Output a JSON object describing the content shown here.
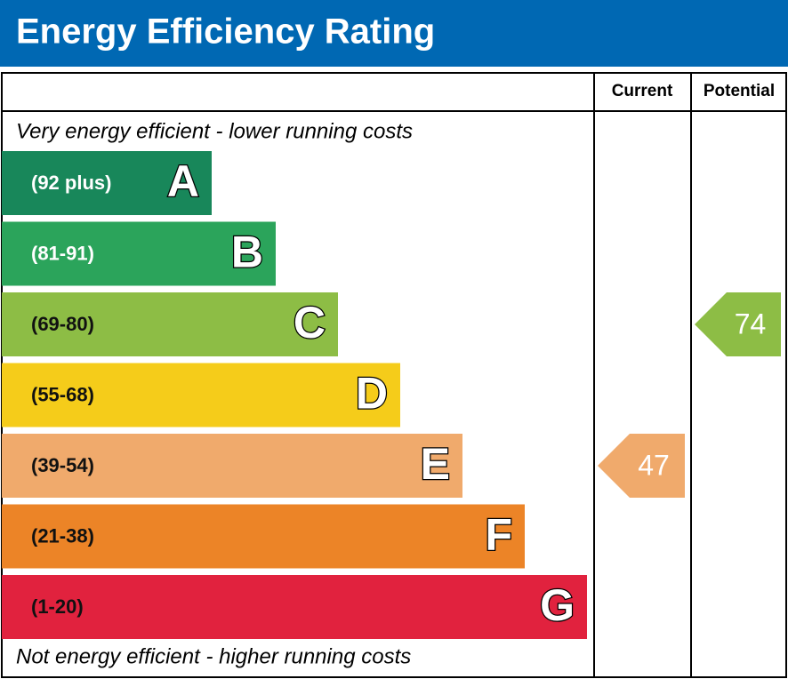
{
  "header": {
    "title": "Energy Efficiency Rating"
  },
  "columns": {
    "current": "Current",
    "potential": "Potential"
  },
  "top_note": "Very energy efficient - lower running costs",
  "bottom_note": "Not energy efficient - higher running costs",
  "bands": [
    {
      "range": "(92 plus)",
      "letter": "A",
      "color": "#18875a"
    },
    {
      "range": "(81-91)",
      "letter": "B",
      "color": "#2ba45b"
    },
    {
      "range": "(69-80)",
      "letter": "C",
      "color": "#8dbd45"
    },
    {
      "range": "(55-68)",
      "letter": "D",
      "color": "#f5cc1a"
    },
    {
      "range": "(39-54)",
      "letter": "E",
      "color": "#f0aa6c"
    },
    {
      "range": "(21-38)",
      "letter": "F",
      "color": "#ec8427"
    },
    {
      "range": "(1-20)",
      "letter": "G",
      "color": "#e1223e"
    }
  ],
  "current": {
    "value": 47,
    "band": "E"
  },
  "potential": {
    "value": 74,
    "band": "C"
  }
}
